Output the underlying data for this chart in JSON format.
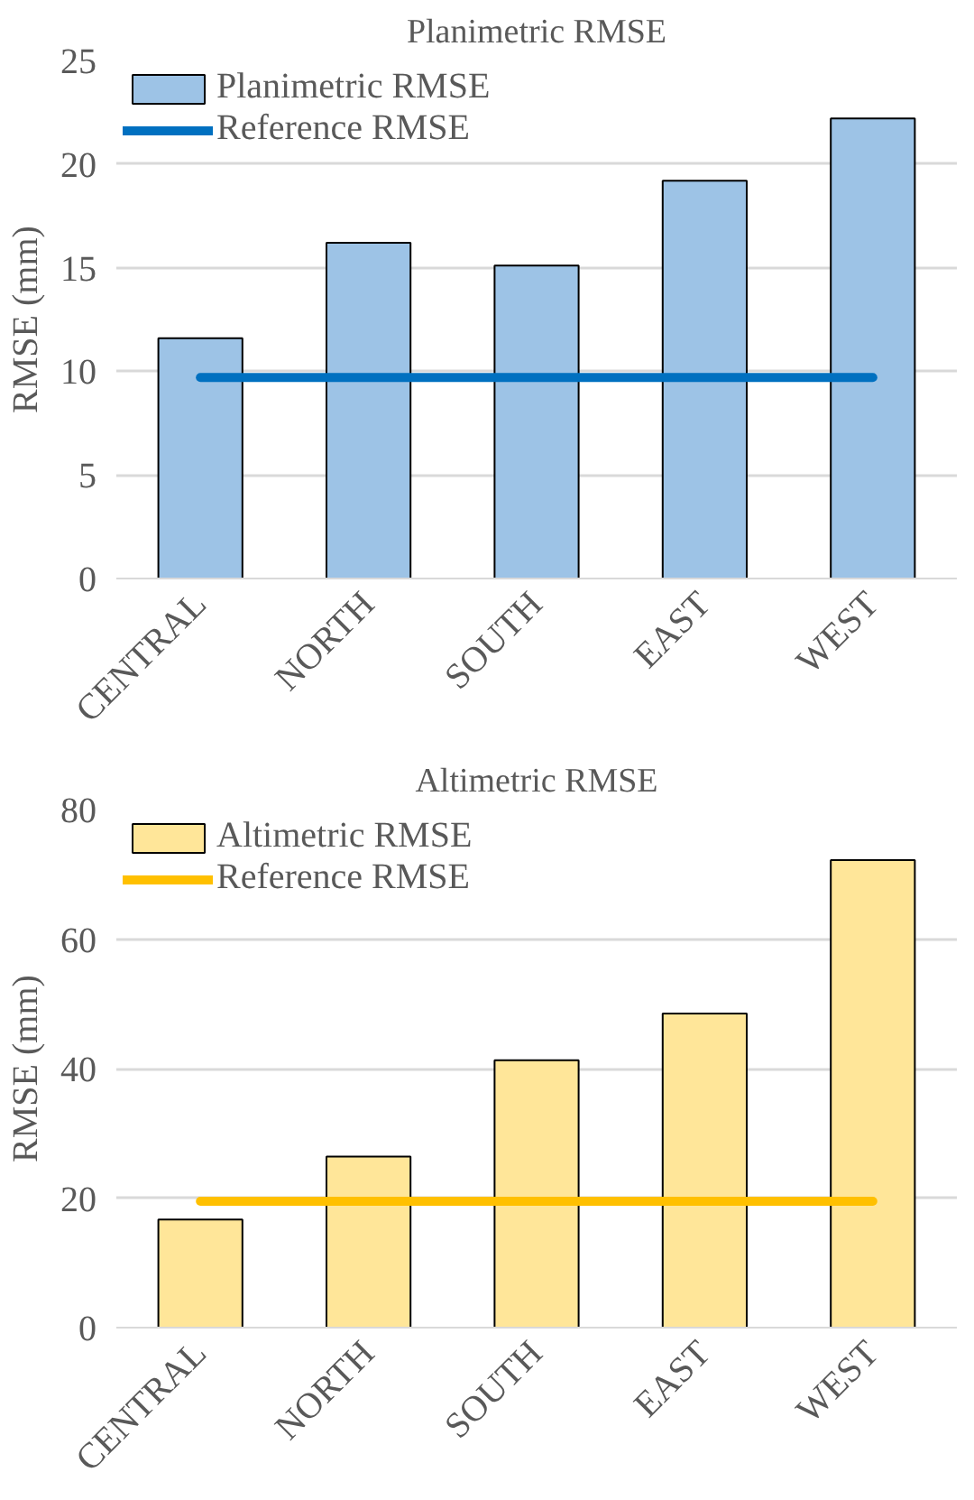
{
  "chart_data": [
    {
      "type": "bar",
      "title": "Planimetric RMSE",
      "ylabel": "RMSE (mm)",
      "categories": [
        "CENTRAL",
        "NORTH",
        "SOUTH",
        "EAST",
        "WEST"
      ],
      "series": [
        {
          "name": "Planimetric RMSE",
          "color": "#9dc3e6",
          "values": [
            11.6,
            16.2,
            15.1,
            19.2,
            22.2
          ]
        },
        {
          "name": "Reference RMSE",
          "type": "line",
          "color": "#0070c0",
          "values": [
            9.7,
            9.7,
            9.7,
            9.7,
            9.7
          ]
        }
      ],
      "ylim": [
        0,
        25
      ],
      "yticks": [
        0,
        5,
        10,
        15,
        20,
        25
      ],
      "grid": "y",
      "legend": "top left"
    },
    {
      "type": "bar",
      "title": "Altimetric RMSE",
      "ylabel": "RMSE (mm)",
      "categories": [
        "CENTRAL",
        "NORTH",
        "SOUTH",
        "EAST",
        "WEST"
      ],
      "series": [
        {
          "name": "Altimetric RMSE",
          "color": "#ffe699",
          "values": [
            16.7,
            26.4,
            41.3,
            48.5,
            72.2
          ]
        },
        {
          "name": "Reference RMSE",
          "type": "line",
          "color": "#ffc000",
          "values": [
            19.5,
            19.5,
            19.5,
            19.5,
            19.5
          ]
        }
      ],
      "ylim": [
        0,
        80
      ],
      "yticks": [
        0,
        20,
        40,
        60,
        80
      ],
      "grid": "y",
      "legend": "top left"
    }
  ]
}
